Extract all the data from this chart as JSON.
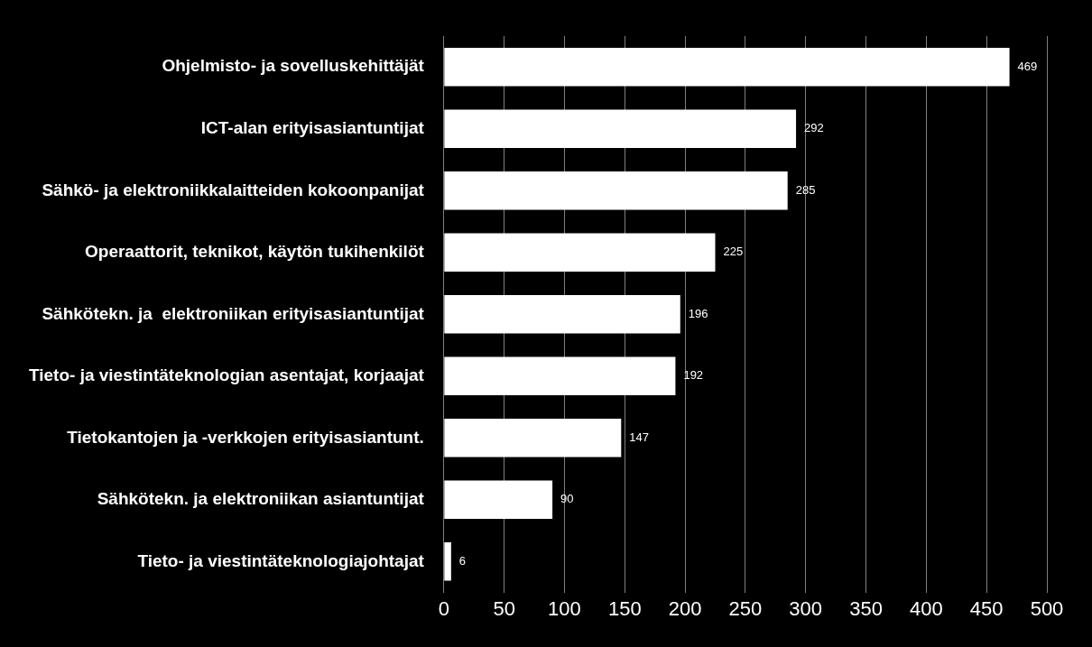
{
  "chart_data": {
    "type": "bar",
    "orientation": "horizontal",
    "categories": [
      "Ohjelmisto- ja sovelluskehittäjät",
      "ICT-alan erityisasiantuntijat",
      "Sähkö- ja elektroniikkalaitteiden kokoonpanijat",
      "Operaattorit, teknikot, käytön tukihenkilöt",
      "Sähkötekn. ja  elektroniikan erityisasiantuntijat",
      "Tieto- ja viestintäteknologian asentajat, korjaajat",
      "Tietokantojen ja -verkkojen erityisasiantunt.",
      "Sähkötekn. ja elektroniikan asiantuntijat",
      "Tieto- ja viestintäteknologiajohtajat"
    ],
    "values": [
      469,
      292,
      285,
      225,
      196,
      192,
      147,
      90,
      6
    ],
    "color": "#ffffff",
    "xlim": [
      0,
      500
    ],
    "xticks": [
      0,
      50,
      100,
      150,
      200,
      250,
      300,
      350,
      400,
      450,
      500
    ],
    "grid": "x",
    "data_labels": true,
    "legend": false
  }
}
